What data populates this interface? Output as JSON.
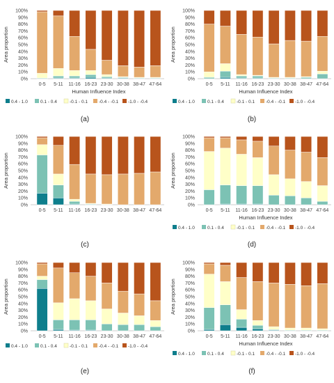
{
  "chart_data": [
    {
      "type": "bar",
      "stacked": true,
      "panel_label": "(a)",
      "categories": [
        "0-5",
        "5-11",
        "11-16",
        "16-23",
        "23-30",
        "30-38",
        "38-47",
        "47-64"
      ],
      "xlabel": "Human Influence Index",
      "ylabel": "Area proportion",
      "ylim": [
        0,
        100
      ],
      "yticks": [
        "0%",
        "10%",
        "20%",
        "30%",
        "40%",
        "50%",
        "60%",
        "70%",
        "80%",
        "90%",
        "100%"
      ],
      "grid": false,
      "legend_position": "bottom",
      "series": [
        {
          "name": "0.4 - 1.0",
          "color": "#0e7e8c",
          "values": [
            0,
            1,
            1,
            2,
            1,
            1,
            0,
            0
          ]
        },
        {
          "name": "0.1 - 0.4",
          "color": "#7cc2b4",
          "values": [
            1,
            3,
            3,
            4,
            2,
            1,
            1,
            1
          ]
        },
        {
          "name": "-0.1 - 0.1",
          "color": "#ffffc8",
          "values": [
            7,
            11,
            8,
            6,
            3,
            1,
            1,
            1
          ]
        },
        {
          "name": "-0.4 - -0.1",
          "color": "#e3a96c",
          "values": [
            90,
            77,
            50,
            31,
            21,
            16,
            15,
            17
          ]
        },
        {
          "name": "-1.0 - -0.4",
          "color": "#b8541c",
          "values": [
            2,
            8,
            38,
            57,
            73,
            81,
            83,
            81
          ]
        }
      ]
    },
    {
      "type": "bar",
      "stacked": true,
      "panel_label": "(b)",
      "categories": [
        "0-5",
        "5-11",
        "11-16",
        "16-23",
        "23-30",
        "30-38",
        "38-47",
        "47-64"
      ],
      "xlabel": "Human Influence Index",
      "ylabel": "Area proportion",
      "ylim": [
        0,
        100
      ],
      "yticks": [
        "0%",
        "10%",
        "20%",
        "30%",
        "40%",
        "50%",
        "60%",
        "70%",
        "80%",
        "90%",
        "100%"
      ],
      "grid": false,
      "legend_position": "bottom",
      "series": [
        {
          "name": "0.4 - 1.0",
          "color": "#0e7e8c",
          "values": [
            0,
            2,
            1,
            1,
            0,
            0,
            0,
            0
          ]
        },
        {
          "name": "0.1 - 0.4",
          "color": "#7cc2b4",
          "values": [
            2,
            9,
            3,
            3,
            1,
            1,
            2,
            7
          ]
        },
        {
          "name": "-0.1 - 0.1",
          "color": "#ffffc8",
          "values": [
            8,
            11,
            2,
            1,
            1,
            1,
            1,
            4
          ]
        },
        {
          "name": "-0.4 - -0.1",
          "color": "#e3a96c",
          "values": [
            70,
            55,
            59,
            56,
            49,
            54,
            52,
            51
          ]
        },
        {
          "name": "-1.0 - -0.4",
          "color": "#b8541c",
          "values": [
            20,
            23,
            35,
            39,
            49,
            44,
            45,
            38
          ]
        }
      ]
    },
    {
      "type": "bar",
      "stacked": true,
      "panel_label": "(c)",
      "categories": [
        "0-5",
        "5-11",
        "11-16",
        "16-23",
        "23-30",
        "30-38",
        "38-47",
        "47-64"
      ],
      "xlabel": "",
      "ylabel": "Area proportion",
      "ylim": [
        0,
        100
      ],
      "yticks": [
        "0%",
        "10%",
        "20%",
        "30%",
        "40%",
        "50%",
        "60%",
        "70%",
        "80%",
        "90%",
        "100%"
      ],
      "grid": false,
      "legend_position": "none",
      "series": [
        {
          "name": "0.4 - 1.0",
          "color": "#0e7e8c",
          "values": [
            17,
            10,
            1,
            0,
            0,
            0,
            0,
            0
          ]
        },
        {
          "name": "0.1 - 0.4",
          "color": "#7cc2b4",
          "values": [
            56,
            19,
            4,
            1,
            0,
            0,
            0,
            0
          ]
        },
        {
          "name": "-0.1 - 0.1",
          "color": "#ffffc8",
          "values": [
            15,
            16,
            3,
            1,
            1,
            0,
            0,
            0
          ]
        },
        {
          "name": "-0.4 - -0.1",
          "color": "#e3a96c",
          "values": [
            10,
            42,
            51,
            43,
            43,
            45,
            46,
            48
          ]
        },
        {
          "name": "-1.0 - -0.4",
          "color": "#b8541c",
          "values": [
            2,
            13,
            41,
            55,
            56,
            55,
            54,
            52
          ]
        }
      ]
    },
    {
      "type": "bar",
      "stacked": true,
      "panel_label": "(d)",
      "categories": [
        "0-5",
        "5-11",
        "11-16",
        "16-23",
        "23-30",
        "30-38",
        "38-47",
        "47-64"
      ],
      "xlabel": "Human Influence Index",
      "ylabel": "Area proportion",
      "ylim": [
        0,
        100
      ],
      "yticks": [
        "0%",
        "10%",
        "20%",
        "30%",
        "40%",
        "50%",
        "60%",
        "70%",
        "80%",
        "90%",
        "100%"
      ],
      "grid": false,
      "legend_position": "bottom",
      "series": [
        {
          "name": "0.4 - 1.0",
          "color": "#0e7e8c",
          "values": [
            0,
            1,
            1,
            1,
            0,
            0,
            0,
            0
          ]
        },
        {
          "name": "0.1 - 0.4",
          "color": "#7cc2b4",
          "values": [
            22,
            28,
            27,
            27,
            14,
            13,
            10,
            5
          ]
        },
        {
          "name": "-0.1 - 0.1",
          "color": "#ffffc8",
          "values": [
            56,
            54,
            46,
            41,
            30,
            25,
            24,
            23
          ]
        },
        {
          "name": "-0.4 - -0.1",
          "color": "#e3a96c",
          "values": [
            20,
            15,
            21,
            24,
            42,
            42,
            43,
            41
          ]
        },
        {
          "name": "-1.0 - -0.4",
          "color": "#b8541c",
          "values": [
            2,
            2,
            5,
            7,
            14,
            20,
            23,
            31
          ]
        }
      ]
    },
    {
      "type": "bar",
      "stacked": true,
      "panel_label": "(e)",
      "categories": [
        "0-5",
        "5-11",
        "11-16",
        "16-23",
        "23-30",
        "30-38",
        "38-47",
        "47-64"
      ],
      "xlabel": "",
      "ylabel": "Area proportion",
      "ylim": [
        0,
        100
      ],
      "yticks": [
        "0%",
        "10%",
        "20%",
        "30%",
        "40%",
        "50%",
        "60%",
        "70%",
        "80%",
        "90%",
        "100%"
      ],
      "grid": false,
      "legend_position": "bottom",
      "series": [
        {
          "name": "0.4 - 1.0",
          "color": "#0e7e8c",
          "values": [
            62,
            2,
            1,
            1,
            0,
            0,
            0,
            0
          ]
        },
        {
          "name": "0.1 - 0.4",
          "color": "#7cc2b4",
          "values": [
            13,
            14,
            15,
            15,
            10,
            9,
            9,
            6
          ]
        },
        {
          "name": "-0.1 - 0.1",
          "color": "#ffffc8",
          "values": [
            5,
            25,
            31,
            28,
            22,
            17,
            13,
            9
          ]
        },
        {
          "name": "-0.4 - -0.1",
          "color": "#e3a96c",
          "values": [
            18,
            51,
            38,
            36,
            38,
            32,
            32,
            29
          ]
        },
        {
          "name": "-1.0 - -0.4",
          "color": "#b8541c",
          "values": [
            2,
            8,
            15,
            20,
            30,
            42,
            46,
            56
          ]
        }
      ]
    },
    {
      "type": "bar",
      "stacked": true,
      "panel_label": "(f)",
      "categories": [
        "0-5",
        "5-11",
        "11-16",
        "16-23",
        "23-30",
        "30-38",
        "38-47",
        "47-64"
      ],
      "xlabel": "Human Influence Index",
      "ylabel": "Area proportion",
      "ylim": [
        0,
        100
      ],
      "yticks": [
        "0%",
        "10%",
        "20%",
        "30%",
        "40%",
        "50%",
        "60%",
        "70%",
        "80%",
        "90%",
        "100%"
      ],
      "grid": false,
      "legend_position": "bottom",
      "series": [
        {
          "name": "0.4 - 1.0",
          "color": "#0e7e8c",
          "values": [
            2,
            9,
            5,
            3,
            1,
            0,
            0,
            0
          ]
        },
        {
          "name": "0.1 - 0.4",
          "color": "#7cc2b4",
          "values": [
            32,
            29,
            12,
            5,
            1,
            1,
            1,
            1
          ]
        },
        {
          "name": "-0.1 - 0.1",
          "color": "#ffffc8",
          "values": [
            49,
            34,
            14,
            7,
            4,
            3,
            3,
            2
          ]
        },
        {
          "name": "-0.4 - -0.1",
          "color": "#e3a96c",
          "values": [
            15,
            24,
            47,
            57,
            64,
            64,
            62,
            66
          ]
        },
        {
          "name": "-1.0 - -0.4",
          "color": "#b8541c",
          "values": [
            2,
            4,
            22,
            28,
            30,
            32,
            34,
            31
          ]
        }
      ]
    }
  ]
}
